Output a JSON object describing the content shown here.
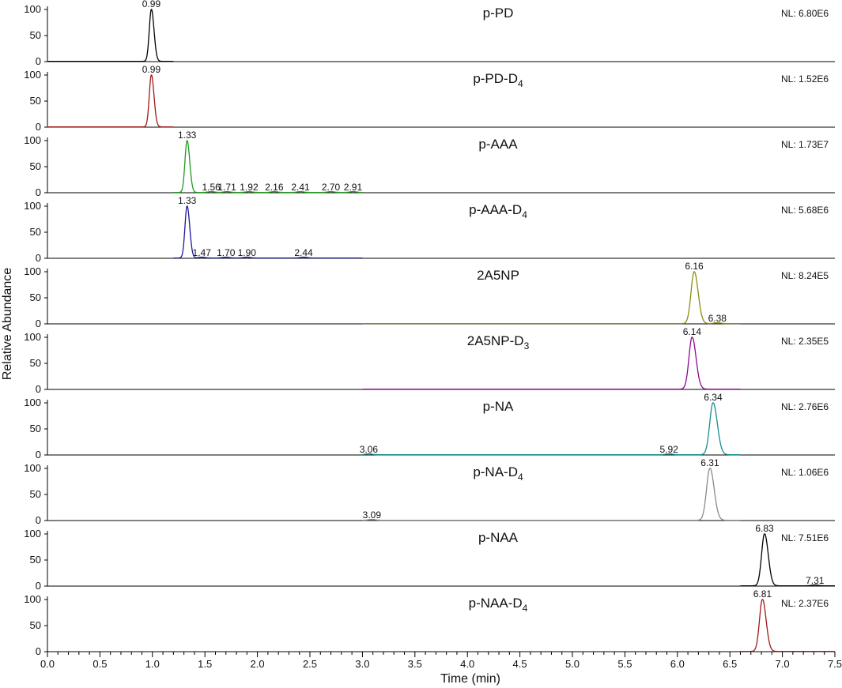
{
  "chart_data": {
    "type": "line",
    "ylabel": "Relative Abundance",
    "xlabel": "Time (min)",
    "xlim": [
      0.0,
      7.5
    ],
    "x_ticks": [
      "0.0",
      "0.5",
      "1.0",
      "1.5",
      "2.0",
      "2.5",
      "3.0",
      "3.5",
      "4.0",
      "4.5",
      "5.0",
      "5.5",
      "6.0",
      "6.5",
      "7.0",
      "7.5"
    ],
    "y_ticks": [
      "0",
      "50",
      "100"
    ],
    "ylim": [
      0,
      100
    ],
    "grid": false,
    "panels": [
      {
        "name": "p-PD",
        "sub": "",
        "nl": "NL: 6.80E6",
        "color": "#000000",
        "range": [
          0.0,
          1.2
        ],
        "peaks": [
          {
            "t": 0.99,
            "h": 100,
            "w": 0.02,
            "label": "0.99"
          }
        ],
        "minor": []
      },
      {
        "name": "p-PD-D",
        "sub": "4",
        "nl": "NL: 1.52E6",
        "color": "#a01818",
        "range": [
          0.0,
          1.2
        ],
        "peaks": [
          {
            "t": 0.99,
            "h": 100,
            "w": 0.02,
            "label": "0.99"
          }
        ],
        "minor": []
      },
      {
        "name": "p-AAA",
        "sub": "",
        "nl": "NL: 1.73E7",
        "color": "#1f9a1f",
        "range": [
          1.2,
          3.0
        ],
        "peaks": [
          {
            "t": 1.33,
            "h": 100,
            "w": 0.02,
            "label": "1.33"
          }
        ],
        "minor": [
          {
            "t": 1.56,
            "label": "1.56"
          },
          {
            "t": 1.71,
            "label": "1.71"
          },
          {
            "t": 1.92,
            "label": "1.92"
          },
          {
            "t": 2.16,
            "label": "2.16"
          },
          {
            "t": 2.41,
            "label": "2.41"
          },
          {
            "t": 2.7,
            "label": "2.70"
          },
          {
            "t": 2.91,
            "label": "2.91"
          }
        ]
      },
      {
        "name": "p-AAA-D",
        "sub": "4",
        "nl": "NL: 5.68E6",
        "color": "#1a1a9c",
        "range": [
          1.2,
          3.0
        ],
        "peaks": [
          {
            "t": 1.33,
            "h": 100,
            "w": 0.02,
            "label": "1.33"
          }
        ],
        "minor": [
          {
            "t": 1.47,
            "label": "1.47"
          },
          {
            "t": 1.7,
            "label": "1.70"
          },
          {
            "t": 1.9,
            "label": "1.90"
          },
          {
            "t": 2.44,
            "label": "2.44"
          }
        ]
      },
      {
        "name": "2A5NP",
        "sub": "",
        "nl": "NL: 8.24E5",
        "color": "#8c8c10",
        "range": [
          3.0,
          6.6
        ],
        "peaks": [
          {
            "t": 6.16,
            "h": 100,
            "w": 0.03,
            "label": "6.16"
          }
        ],
        "minor": [
          {
            "t": 6.38,
            "label": "6.38"
          }
        ]
      },
      {
        "name": "2A5NP-D",
        "sub": "3",
        "nl": "NL: 2.35E5",
        "color": "#8c0a8c",
        "range": [
          3.0,
          6.6
        ],
        "peaks": [
          {
            "t": 6.14,
            "h": 100,
            "w": 0.03,
            "label": "6.14"
          }
        ],
        "minor": []
      },
      {
        "name": "p-NA",
        "sub": "",
        "nl": "NL: 2.76E6",
        "color": "#14908c",
        "range": [
          3.0,
          6.6
        ],
        "peaks": [
          {
            "t": 6.34,
            "h": 100,
            "w": 0.032,
            "label": "6.34"
          }
        ],
        "minor": [
          {
            "t": 3.06,
            "label": "3.06"
          },
          {
            "t": 5.92,
            "label": "5.92"
          }
        ]
      },
      {
        "name": "p-NA-D",
        "sub": "4",
        "nl": "NL: 1.06E6",
        "color": "#8a8a8a",
        "range": [
          3.0,
          6.6
        ],
        "peaks": [
          {
            "t": 6.31,
            "h": 100,
            "w": 0.032,
            "label": "6.31"
          }
        ],
        "minor": [
          {
            "t": 3.09,
            "label": "3.09"
          }
        ]
      },
      {
        "name": "p-NAA",
        "sub": "",
        "nl": "NL: 7.51E6",
        "color": "#000000",
        "range": [
          6.6,
          7.5
        ],
        "peaks": [
          {
            "t": 6.83,
            "h": 100,
            "w": 0.028,
            "label": "6.83"
          }
        ],
        "minor": [
          {
            "t": 7.31,
            "label": "7.31"
          }
        ]
      },
      {
        "name": "p-NAA-D",
        "sub": "4",
        "nl": "NL: 2.37E6",
        "color": "#a01818",
        "range": [
          6.6,
          7.5
        ],
        "peaks": [
          {
            "t": 6.81,
            "h": 100,
            "w": 0.028,
            "label": "6.81"
          }
        ],
        "minor": []
      }
    ]
  }
}
